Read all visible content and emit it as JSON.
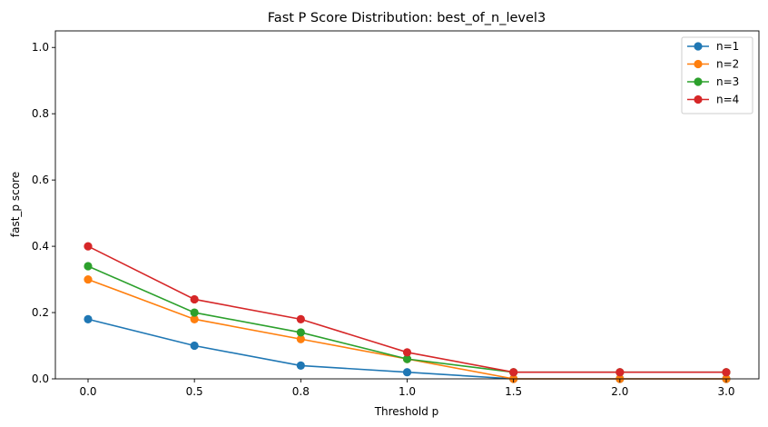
{
  "chart_data": {
    "type": "line",
    "title": "Fast P Score Distribution: best_of_n_level3",
    "xlabel": "Threshold p",
    "ylabel": "fast_p score",
    "categories": [
      "0.0",
      "0.5",
      "0.8",
      "1.0",
      "1.5",
      "2.0",
      "3.0"
    ],
    "ylim": [
      0,
      1.05
    ],
    "yticks": [
      "0.0",
      "0.2",
      "0.4",
      "0.6",
      "0.8",
      "1.0"
    ],
    "grid": false,
    "legend_position": "top-right",
    "series": [
      {
        "name": "n=1",
        "color": "#1f77b4",
        "values": [
          0.18,
          0.1,
          0.04,
          0.02,
          0.0,
          0.0,
          0.0
        ]
      },
      {
        "name": "n=2",
        "color": "#ff7f0e",
        "values": [
          0.3,
          0.18,
          0.12,
          0.06,
          0.0,
          0.0,
          0.0
        ]
      },
      {
        "name": "n=3",
        "color": "#2ca02c",
        "values": [
          0.34,
          0.2,
          0.14,
          0.06,
          0.02,
          0.02,
          0.02
        ]
      },
      {
        "name": "n=4",
        "color": "#d62728",
        "values": [
          0.4,
          0.24,
          0.18,
          0.08,
          0.02,
          0.02,
          0.02
        ]
      }
    ]
  }
}
